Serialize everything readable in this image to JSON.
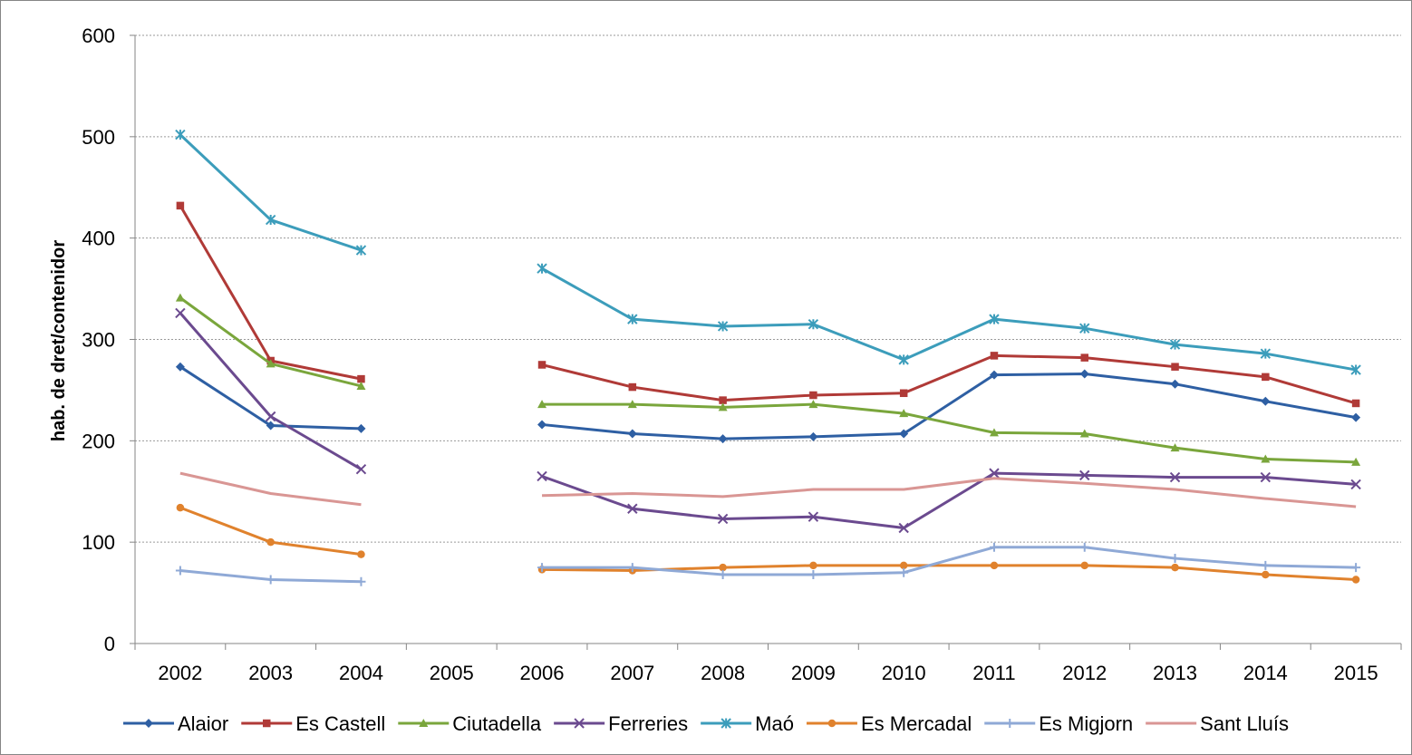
{
  "chart_data": {
    "type": "line",
    "title": "",
    "xlabel": "",
    "ylabel": "hab. de dret/contenidor",
    "categories": [
      "2002",
      "2003",
      "2004",
      "2005",
      "2006",
      "2007",
      "2008",
      "2009",
      "2010",
      "2011",
      "2012",
      "2013",
      "2014",
      "2015"
    ],
    "ylim": [
      0,
      600
    ],
    "yticks": [
      0,
      100,
      200,
      300,
      400,
      500,
      600
    ],
    "grid": true,
    "legend_position": "bottom",
    "series": [
      {
        "name": "Alaior",
        "color": "#2e5fa3",
        "marker": "diamond",
        "values": [
          273,
          215,
          212,
          null,
          216,
          207,
          202,
          204,
          207,
          265,
          266,
          256,
          239,
          223
        ]
      },
      {
        "name": "Es Castell",
        "color": "#b03a37",
        "marker": "square",
        "values": [
          432,
          279,
          261,
          null,
          275,
          253,
          240,
          245,
          247,
          284,
          282,
          273,
          263,
          237
        ]
      },
      {
        "name": "Ciutadella",
        "color": "#7aa63c",
        "marker": "triangle",
        "values": [
          341,
          276,
          254,
          null,
          236,
          236,
          233,
          236,
          227,
          208,
          207,
          193,
          182,
          179
        ]
      },
      {
        "name": "Ferreries",
        "color": "#6b4a8f",
        "marker": "x",
        "values": [
          326,
          224,
          172,
          null,
          165,
          133,
          123,
          125,
          114,
          168,
          166,
          164,
          164,
          157
        ]
      },
      {
        "name": "Maó",
        "color": "#3c9dbb",
        "marker": "star",
        "values": [
          502,
          418,
          388,
          null,
          370,
          320,
          313,
          315,
          280,
          320,
          311,
          295,
          286,
          270
        ]
      },
      {
        "name": "Es Mercadal",
        "color": "#e0822d",
        "marker": "circle",
        "values": [
          134,
          100,
          88,
          null,
          73,
          72,
          75,
          77,
          77,
          77,
          77,
          75,
          68,
          63
        ]
      },
      {
        "name": "Es Migjorn",
        "color": "#8fa9d6",
        "marker": "plus",
        "values": [
          72,
          63,
          61,
          null,
          75,
          75,
          68,
          68,
          70,
          95,
          95,
          84,
          77,
          75
        ]
      },
      {
        "name": "Sant Lluís",
        "color": "#d99694",
        "marker": "none",
        "values": [
          168,
          148,
          137,
          null,
          146,
          148,
          145,
          152,
          152,
          163,
          158,
          152,
          143,
          135
        ]
      }
    ]
  }
}
